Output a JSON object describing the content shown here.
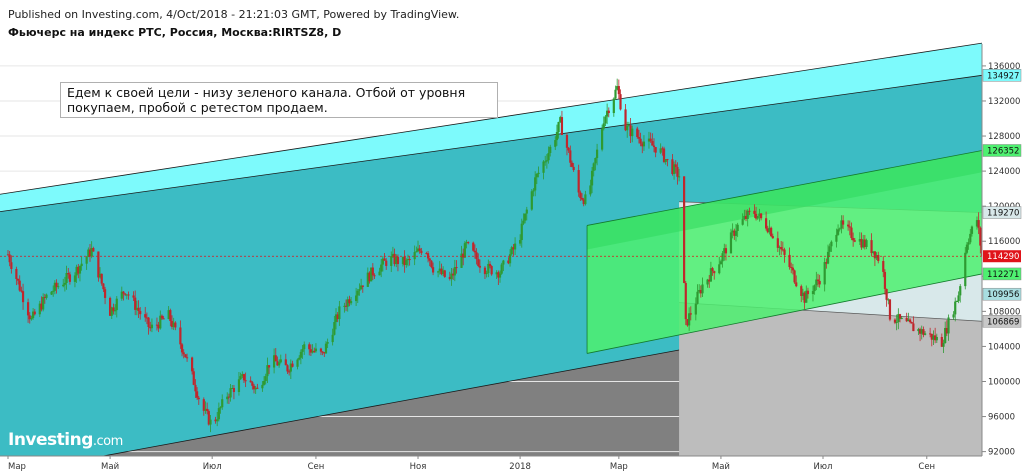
{
  "header": {
    "published": "Published on Investing.com, 4/Oct/2018 - 21:21:03 GMT, Powered by TradingView.",
    "instrument": "Фьючерс на индекс РТС, Россия, Москва:RIRTSZ8, D"
  },
  "annotation": {
    "text": "Едем к своей цели - низу зеленого канала. Отбой от уровня покупаем, пробой с ретестом продаем."
  },
  "logo": {
    "name": "Investing",
    "domain": ".com"
  },
  "colors": {
    "cyan_channel": "#3cbcc4",
    "cyan_upper": "#7dfafc",
    "gray_lower": "#808080",
    "green_channel": "#4ef070",
    "green_dark": "#2fd85c",
    "light_box": "#d8e8ea",
    "bull_candle": "#2e9a32",
    "bear_candle": "#c0262c",
    "current_price": "#e0131a",
    "grid": "#e6e6e6"
  },
  "chart_data": {
    "type": "candlestick",
    "timeframe": "D",
    "x_range": [
      "2017-03-01",
      "2018-10-04"
    ],
    "x_ticks": [
      "Мар",
      "Май",
      "Июл",
      "Сен",
      "Ноя",
      "2018",
      "Мар",
      "Май",
      "Июл",
      "Сен"
    ],
    "y_range": [
      91500,
      138500
    ],
    "y_ticks": [
      92000,
      96000,
      100000,
      104000,
      108000,
      112000,
      116000,
      120000,
      124000,
      128000,
      132000,
      136000
    ],
    "price_labels": [
      {
        "value": 134927,
        "color": "#7dfafc"
      },
      {
        "value": 126352,
        "color": "#4ef070"
      },
      {
        "value": 119270,
        "color": "#d8e8ea"
      },
      {
        "value": 114290,
        "color": "#e0131a",
        "current": true
      },
      {
        "value": 112271,
        "color": "#4ef070"
      },
      {
        "value": 109956,
        "color": "#a8dde0"
      },
      {
        "value": 106869,
        "color": "#c8c8c8"
      }
    ],
    "current_price": 114290,
    "close_path": [
      [
        "2017-03-01",
        114500
      ],
      [
        "2017-03-15",
        107000
      ],
      [
        "2017-03-25",
        110000
      ],
      [
        "2017-04-10",
        112500
      ],
      [
        "2017-04-20",
        115000
      ],
      [
        "2017-05-01",
        108000
      ],
      [
        "2017-05-10",
        110500
      ],
      [
        "2017-05-25",
        106000
      ],
      [
        "2017-06-05",
        107500
      ],
      [
        "2017-06-15",
        103000
      ],
      [
        "2017-06-25",
        97000
      ],
      [
        "2017-07-01",
        95000
      ],
      [
        "2017-07-10",
        98500
      ],
      [
        "2017-07-20",
        100500
      ],
      [
        "2017-07-28",
        99000
      ],
      [
        "2017-08-05",
        102500
      ],
      [
        "2017-08-15",
        101500
      ],
      [
        "2017-08-25",
        104000
      ],
      [
        "2017-09-05",
        103000
      ],
      [
        "2017-09-15",
        108000
      ],
      [
        "2017-09-25",
        110500
      ],
      [
        "2017-10-05",
        112500
      ],
      [
        "2017-10-15",
        114000
      ],
      [
        "2017-10-25",
        113500
      ],
      [
        "2017-11-05",
        115500
      ],
      [
        "2017-11-10",
        113000
      ],
      [
        "2017-11-20",
        111500
      ],
      [
        "2017-11-30",
        115500
      ],
      [
        "2017-12-10",
        113000
      ],
      [
        "2017-12-20",
        112500
      ],
      [
        "2017-12-31",
        116000
      ],
      [
        "2018-01-10",
        123000
      ],
      [
        "2018-01-20",
        127000
      ],
      [
        "2018-01-25",
        129500
      ],
      [
        "2018-01-30",
        126000
      ],
      [
        "2018-02-05",
        121500
      ],
      [
        "2018-02-10",
        120500
      ],
      [
        "2018-02-20",
        130000
      ],
      [
        "2018-02-28",
        133500
      ],
      [
        "2018-03-05",
        129000
      ],
      [
        "2018-03-15",
        127500
      ],
      [
        "2018-03-25",
        126500
      ],
      [
        "2018-04-01",
        124500
      ],
      [
        "2018-04-06",
        123500
      ],
      [
        "2018-04-10",
        106500
      ],
      [
        "2018-04-20",
        111000
      ],
      [
        "2018-05-01",
        114000
      ],
      [
        "2018-05-10",
        117500
      ],
      [
        "2018-05-20",
        119500
      ],
      [
        "2018-05-30",
        117500
      ],
      [
        "2018-06-10",
        113500
      ],
      [
        "2018-06-20",
        109500
      ],
      [
        "2018-06-30",
        112000
      ],
      [
        "2018-07-10",
        118000
      ],
      [
        "2018-07-20",
        116500
      ],
      [
        "2018-07-31",
        115000
      ],
      [
        "2018-08-05",
        113500
      ],
      [
        "2018-08-10",
        107500
      ],
      [
        "2018-08-20",
        106500
      ],
      [
        "2018-08-31",
        105500
      ],
      [
        "2018-09-10",
        104500
      ],
      [
        "2018-09-20",
        110000
      ],
      [
        "2018-09-25",
        116000
      ],
      [
        "2018-10-01",
        118500
      ],
      [
        "2018-10-04",
        114290
      ]
    ],
    "channels": [
      {
        "name": "cyan-channel",
        "color": "#3cbcc4",
        "upper": [
          [
            "2017-03-01",
            119500
          ],
          [
            "2018-10-04",
            134927
          ]
        ],
        "lower": [
          [
            "2017-03-01",
            89500
          ],
          [
            "2018-10-04",
            109956
          ]
        ]
      },
      {
        "name": "cyan-upper-band",
        "color": "#7dfafc",
        "upper": [
          [
            "2017-03-01",
            121500
          ],
          [
            "2018-10-04",
            138600
          ]
        ],
        "lower": [
          [
            "2017-03-01",
            119500
          ],
          [
            "2018-10-04",
            134927
          ]
        ]
      },
      {
        "name": "green-channel",
        "color": "#4ef070",
        "upper": [
          [
            "2018-02-10",
            117800
          ],
          [
            "2018-10-04",
            126352
          ]
        ],
        "lower": [
          [
            "2018-02-10",
            103200
          ],
          [
            "2018-10-04",
            112271
          ]
        ]
      },
      {
        "name": "gray-box",
        "color": "#c8c8c8",
        "upper": [
          [
            "2018-04-06",
            109000
          ],
          [
            "2018-10-04",
            106869
          ]
        ],
        "lower": [
          [
            "2018-04-06",
            91000
          ],
          [
            "2018-10-04",
            91000
          ]
        ]
      },
      {
        "name": "light-box",
        "color": "#d8e8ea",
        "upper": [
          [
            "2018-04-06",
            120500
          ],
          [
            "2018-10-04",
            119270
          ]
        ],
        "lower": [
          [
            "2018-04-06",
            109000
          ],
          [
            "2018-10-04",
            106869
          ]
        ]
      }
    ]
  }
}
